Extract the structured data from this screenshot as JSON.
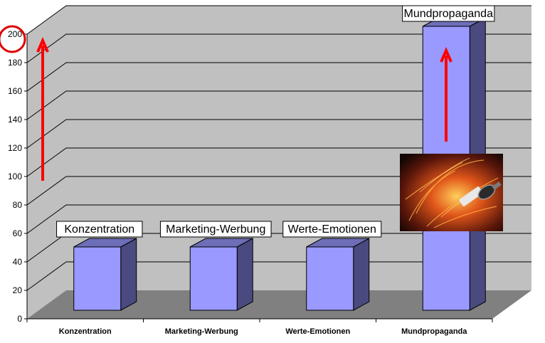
{
  "chart_data": {
    "type": "bar",
    "categories": [
      "Konzentration",
      "Marketing-Werbung",
      "Werte-Emotionen",
      "Mundpropaganda"
    ],
    "values": [
      45,
      45,
      45,
      200
    ],
    "data_labels": [
      "Konzentration",
      "Marketing-Werbung",
      "Werte-Emotionen",
      "Mundpropaganda"
    ],
    "ylim": [
      0,
      200
    ],
    "yticks": [
      0,
      20,
      40,
      60,
      80,
      100,
      120,
      140,
      160,
      180,
      200
    ],
    "grid": true,
    "style": "3d-column",
    "colors": {
      "bar_front": "#9999ff",
      "bar_side": "#4a4a80",
      "bar_top": "#6d6db8",
      "wall": "#c0c0c0",
      "floor": "#808080",
      "annotation": "#ff0000"
    },
    "annotations": [
      "circle around 200 tick",
      "upward red arrow left of chart",
      "upward red arrow on Mundpropaganda bar",
      "photo of sparks and lighter"
    ]
  }
}
